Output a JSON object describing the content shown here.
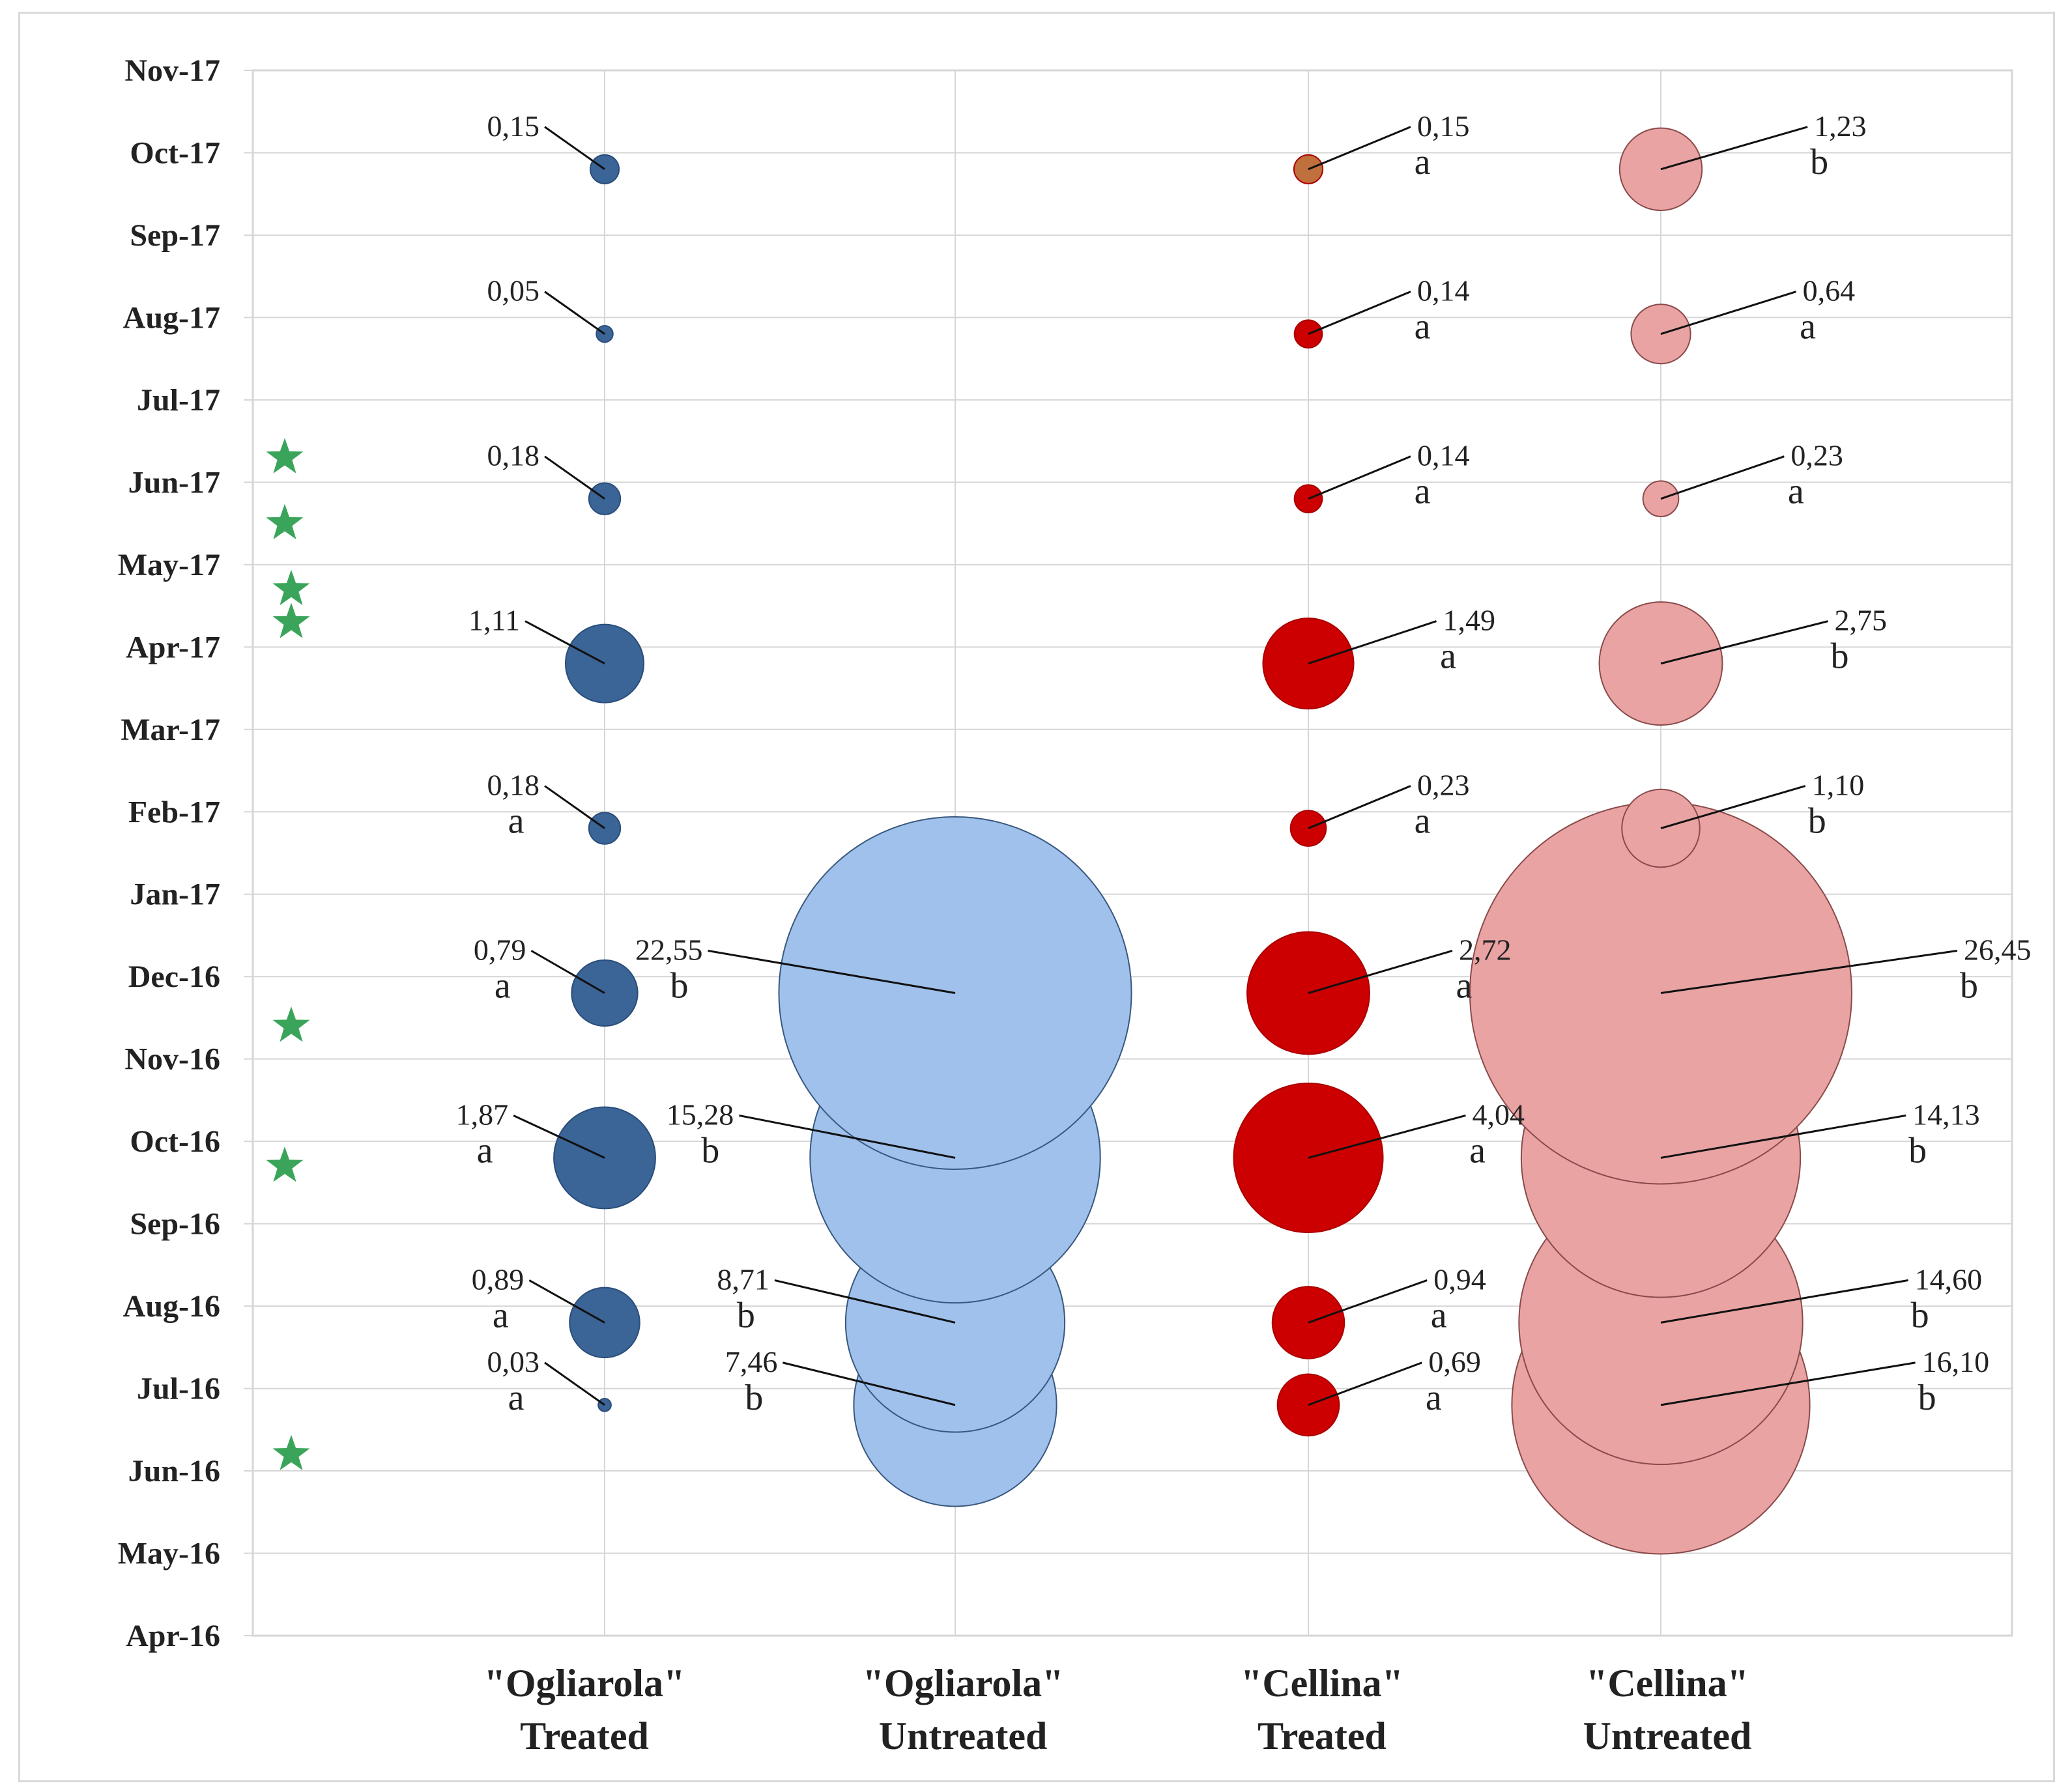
{
  "chart_data": {
    "type": "bubble",
    "title": "",
    "xlabel": "",
    "ylabel": "",
    "grid": true,
    "y_ticks": [
      "Apr-16",
      "May-16",
      "Jun-16",
      "Jul-16",
      "Aug-16",
      "Sep-16",
      "Oct-16",
      "Nov-16",
      "Dec-16",
      "Jan-17",
      "Feb-17",
      "Mar-17",
      "Apr-17",
      "May-17",
      "Jun-17",
      "Jul-17",
      "Aug-17",
      "Sep-17",
      "Oct-17",
      "Nov-17"
    ],
    "categories": [
      {
        "line1": "\"Ogliarola\"",
        "line2": "Treated"
      },
      {
        "line1": "\"Ogliarola\"",
        "line2": "Untreated"
      },
      {
        "line1": "\"Cellina\"",
        "line2": "Treated"
      },
      {
        "line1": "\"Cellina\"",
        "line2": "Untreated"
      }
    ],
    "colors": {
      "ogliarola_treated": "#3b6497",
      "ogliarola_untreated": "#9fc1ec",
      "cellina_treated": "#cc0000",
      "cellina_untreated": "#e9a3a3",
      "oct17_cellina_treated": "#c0703c",
      "star": "#3aa55a",
      "grid": "#d6d6d6"
    },
    "treatment_markers": [
      2.2,
      5.7,
      7.4,
      12.3,
      12.7,
      13.5,
      14.3
    ],
    "series": [
      {
        "name": "\"Ogliarola\" Treated",
        "points": [
          {
            "month": 2.8,
            "value": 0.03,
            "label": "0,03",
            "letter": "a"
          },
          {
            "month": 3.8,
            "value": 0.89,
            "label": "0,89",
            "letter": "a"
          },
          {
            "month": 5.8,
            "value": 1.87,
            "label": "1,87",
            "letter": "a"
          },
          {
            "month": 7.8,
            "value": 0.79,
            "label": "0,79",
            "letter": "a"
          },
          {
            "month": 9.8,
            "value": 0.18,
            "label": "0,18",
            "letter": "a"
          },
          {
            "month": 11.8,
            "value": 1.11,
            "label": "1,11",
            "letter": ""
          },
          {
            "month": 13.8,
            "value": 0.18,
            "label": "0,18",
            "letter": ""
          },
          {
            "month": 15.8,
            "value": 0.05,
            "label": "0,05",
            "letter": ""
          },
          {
            "month": 17.8,
            "value": 0.15,
            "label": "0,15",
            "letter": ""
          }
        ]
      },
      {
        "name": "\"Ogliarola\" Untreated",
        "points": [
          {
            "month": 2.8,
            "value": 7.46,
            "label": "7,46",
            "letter": "b"
          },
          {
            "month": 3.8,
            "value": 8.71,
            "label": "8,71",
            "letter": "b"
          },
          {
            "month": 5.8,
            "value": 15.28,
            "label": "15,28",
            "letter": "b"
          },
          {
            "month": 7.8,
            "value": 22.55,
            "label": "22,55",
            "letter": "b"
          }
        ]
      },
      {
        "name": "\"Cellina\" Treated",
        "points": [
          {
            "month": 2.8,
            "value": 0.69,
            "label": "0,69",
            "letter": "a"
          },
          {
            "month": 3.8,
            "value": 0.94,
            "label": "0,94",
            "letter": "a"
          },
          {
            "month": 5.8,
            "value": 4.04,
            "label": "4,04",
            "letter": "a"
          },
          {
            "month": 7.8,
            "value": 2.72,
            "label": "2,72",
            "letter": "a"
          },
          {
            "month": 9.8,
            "value": 0.23,
            "label": "0,23",
            "letter": "a"
          },
          {
            "month": 11.8,
            "value": 1.49,
            "label": "1,49",
            "letter": "a"
          },
          {
            "month": 13.8,
            "value": 0.14,
            "label": "0,14",
            "letter": "a"
          },
          {
            "month": 15.8,
            "value": 0.14,
            "label": "0,14",
            "letter": "a"
          },
          {
            "month": 17.8,
            "value": 0.15,
            "label": "0,15",
            "letter": "a"
          }
        ]
      },
      {
        "name": "\"Cellina\" Untreated",
        "points": [
          {
            "month": 2.8,
            "value": 16.1,
            "label": "16,10",
            "letter": "b"
          },
          {
            "month": 3.8,
            "value": 14.6,
            "label": "14,60",
            "letter": "b"
          },
          {
            "month": 5.8,
            "value": 14.13,
            "label": "14,13",
            "letter": "b"
          },
          {
            "month": 7.8,
            "value": 26.45,
            "label": "26,45",
            "letter": "b"
          },
          {
            "month": 9.8,
            "value": 1.1,
            "label": "1,10",
            "letter": "b"
          },
          {
            "month": 11.8,
            "value": 2.75,
            "label": "2,75",
            "letter": "b"
          },
          {
            "month": 13.8,
            "value": 0.23,
            "label": "0,23",
            "letter": "a"
          },
          {
            "month": 15.8,
            "value": 0.64,
            "label": "0,64",
            "letter": "a"
          },
          {
            "month": 17.8,
            "value": 1.23,
            "label": "1,23",
            "letter": "b"
          }
        ]
      }
    ]
  }
}
